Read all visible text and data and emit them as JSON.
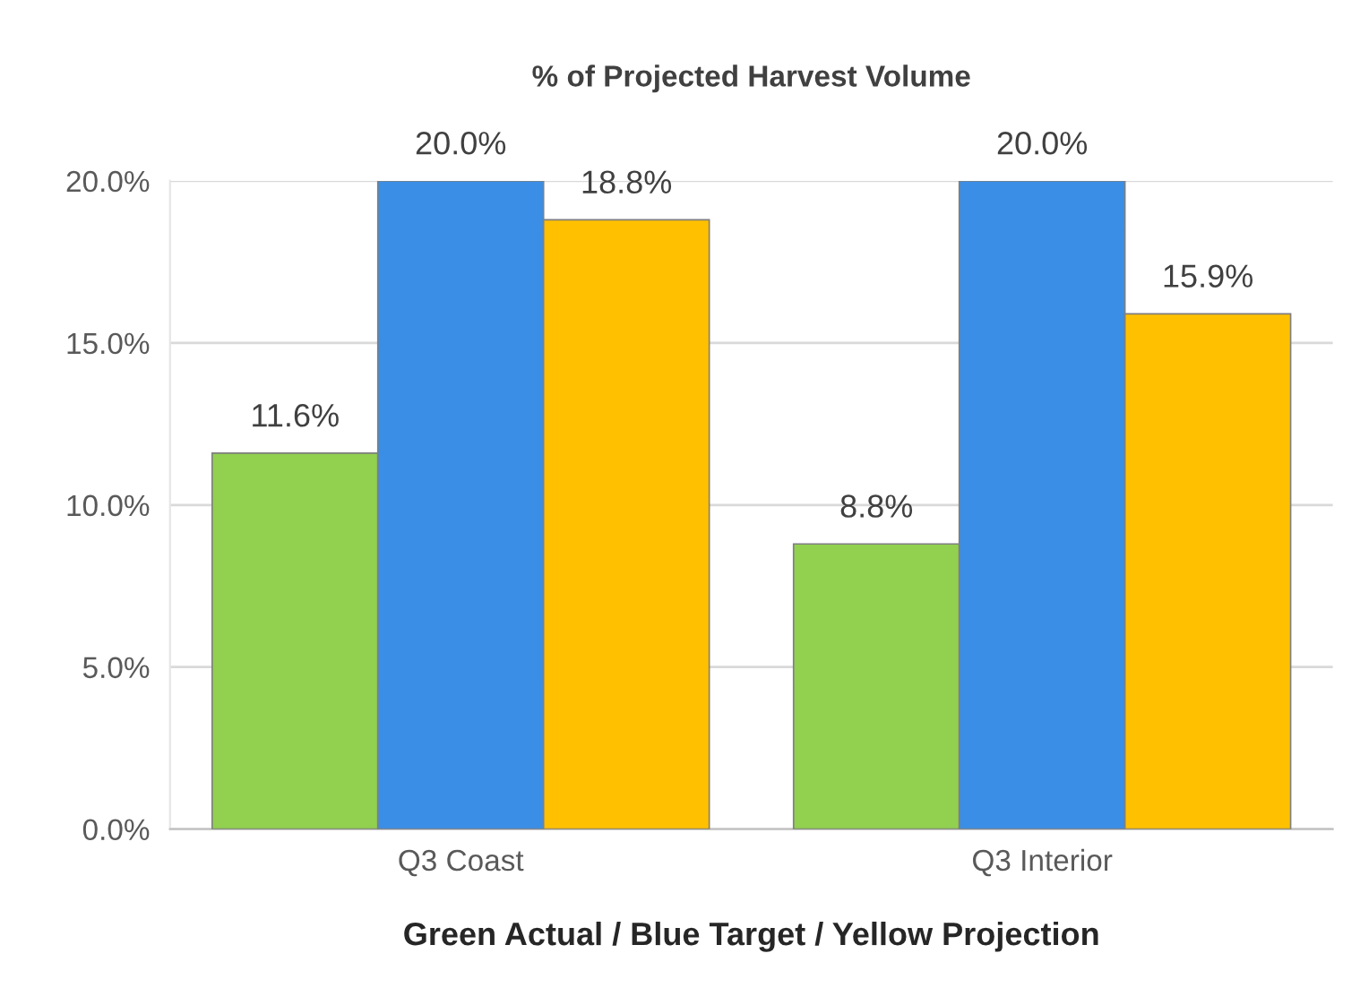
{
  "chart_data": {
    "type": "bar",
    "title": "% of Projected Harvest Volume",
    "xlabel": "Green Actual / Blue Target / Yellow Projection",
    "categories": [
      "Q3 Coast",
      "Q3 Interior"
    ],
    "series": [
      {
        "color": "#92d050",
        "values": [
          11.6,
          8.8
        ],
        "value_labels": [
          "11.6%",
          "8.8%"
        ]
      },
      {
        "color": "#3a8ee6",
        "values": [
          20.0,
          20.0
        ],
        "value_labels": [
          "20.0%",
          "20.0%"
        ]
      },
      {
        "color": "#ffc000",
        "values": [
          18.8,
          15.9
        ],
        "value_labels": [
          "18.8%",
          "15.9%"
        ]
      }
    ],
    "ylim": [
      0,
      20.0
    ],
    "yticks": [
      {
        "value": 0,
        "label": "0.0%"
      },
      {
        "value": 5,
        "label": "5.0%"
      },
      {
        "value": 10,
        "label": "10.0%"
      },
      {
        "value": 15,
        "label": "15.0%"
      },
      {
        "value": 20,
        "label": "20.0%"
      }
    ],
    "grid": "y"
  }
}
